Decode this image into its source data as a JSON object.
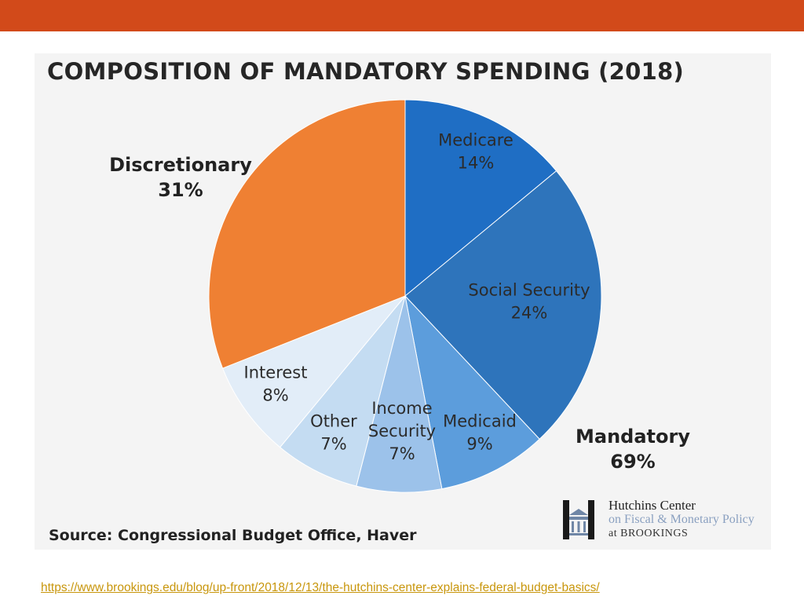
{
  "chart_data": {
    "type": "pie",
    "title": "COMPOSITION OF MANDATORY SPENDING (2018)",
    "slices": [
      {
        "label": "Medicare",
        "value": 14,
        "value_label": "14%",
        "color": "#1f6ec4"
      },
      {
        "label": "Social Security",
        "value": 24,
        "value_label": "24%",
        "color": "#2e74bb"
      },
      {
        "label": "Medicaid",
        "value": 9,
        "value_label": "9%",
        "color": "#5c9ddc"
      },
      {
        "label": "Income Security",
        "value": 7,
        "value_label": "7%",
        "color": "#9cc2ea"
      },
      {
        "label": "Other",
        "value": 7,
        "value_label": "7%",
        "color": "#c4dcf2"
      },
      {
        "label": "Interest",
        "value": 8,
        "value_label": "8%",
        "color": "#e2edf8"
      },
      {
        "label": "Discretionary",
        "value": 31,
        "value_label": "31%",
        "color": "#ef8033"
      }
    ],
    "groups": [
      {
        "label": "Discretionary",
        "value": 31,
        "value_label": "31%"
      },
      {
        "label": "Mandatory",
        "value": 69,
        "value_label": "69%"
      }
    ]
  },
  "source": "Source: Congressional Budget Office, Haver",
  "logo": {
    "line1": "Hutchins Center",
    "line2": "on Fiscal & Monetary Policy",
    "line3": "at BROOKINGS"
  },
  "url": "https://www.brookings.edu/blog/up-front/2018/12/13/the-hutchins-center-explains-federal-budget-basics/",
  "colors": {
    "top_bar": "#d24a1a",
    "link": "#c8960c"
  }
}
